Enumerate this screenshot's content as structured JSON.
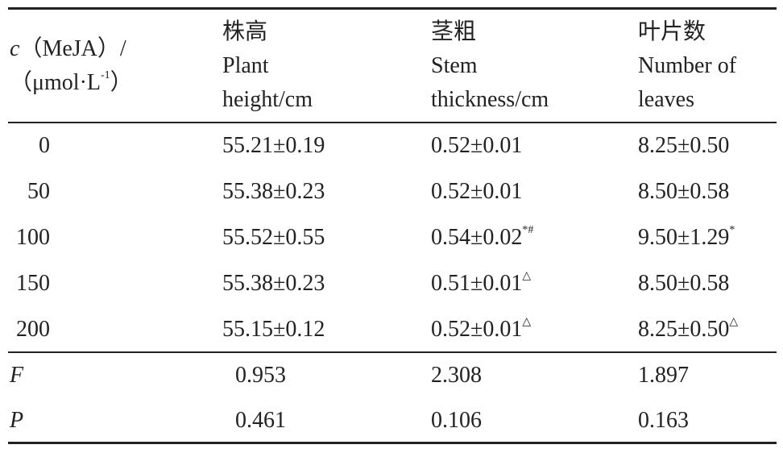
{
  "table": {
    "header": [
      [
        [
          {
            "text": "c",
            "italic": true
          },
          {
            "text": "（MeJA）/"
          }
        ],
        [
          {
            "text": "（μmol·L"
          },
          {
            "text": "-1",
            "sup": true
          },
          {
            "text": "）"
          }
        ]
      ],
      [
        [
          {
            "text": "株高"
          }
        ],
        [
          {
            "text": "Plant"
          }
        ],
        [
          {
            "text": "height/cm"
          }
        ]
      ],
      [
        [
          {
            "text": "茎粗"
          }
        ],
        [
          {
            "text": "Stem"
          }
        ],
        [
          {
            "text": "thickness/cm"
          }
        ]
      ],
      [
        [
          {
            "text": "叶片数"
          }
        ],
        [
          {
            "text": "Number of"
          }
        ],
        [
          {
            "text": "leaves"
          }
        ]
      ]
    ],
    "rows": [
      [
        {
          "text": "0"
        },
        {
          "text": "55.21±0.19"
        },
        {
          "text": "0.52±0.01"
        },
        {
          "text": "8.25±0.50"
        }
      ],
      [
        {
          "text": "50"
        },
        {
          "text": "55.38±0.23"
        },
        {
          "text": "0.52±0.01"
        },
        {
          "text": "8.50±0.58"
        }
      ],
      [
        {
          "text": "100"
        },
        {
          "text": "55.52±0.55"
        },
        {
          "text": "0.54±0.02",
          "sup": "*#"
        },
        {
          "text": "9.50±1.29",
          "sup": "*"
        }
      ],
      [
        {
          "text": "150"
        },
        {
          "text": "55.38±0.23"
        },
        {
          "text": "0.51±0.01",
          "sup": "△"
        },
        {
          "text": "8.50±0.58"
        }
      ],
      [
        {
          "text": "200"
        },
        {
          "text": "55.15±0.12"
        },
        {
          "text": "0.52±0.01",
          "sup": "△"
        },
        {
          "text": "8.25±0.50",
          "sup": "△"
        }
      ]
    ],
    "stats": [
      [
        {
          "text": "F",
          "italic": true
        },
        {
          "text": "0.953"
        },
        {
          "text": "2.308"
        },
        {
          "text": "1.897"
        }
      ],
      [
        {
          "text": "P",
          "italic": true
        },
        {
          "text": "0.461"
        },
        {
          "text": "0.106"
        },
        {
          "text": "0.163"
        }
      ]
    ]
  }
}
